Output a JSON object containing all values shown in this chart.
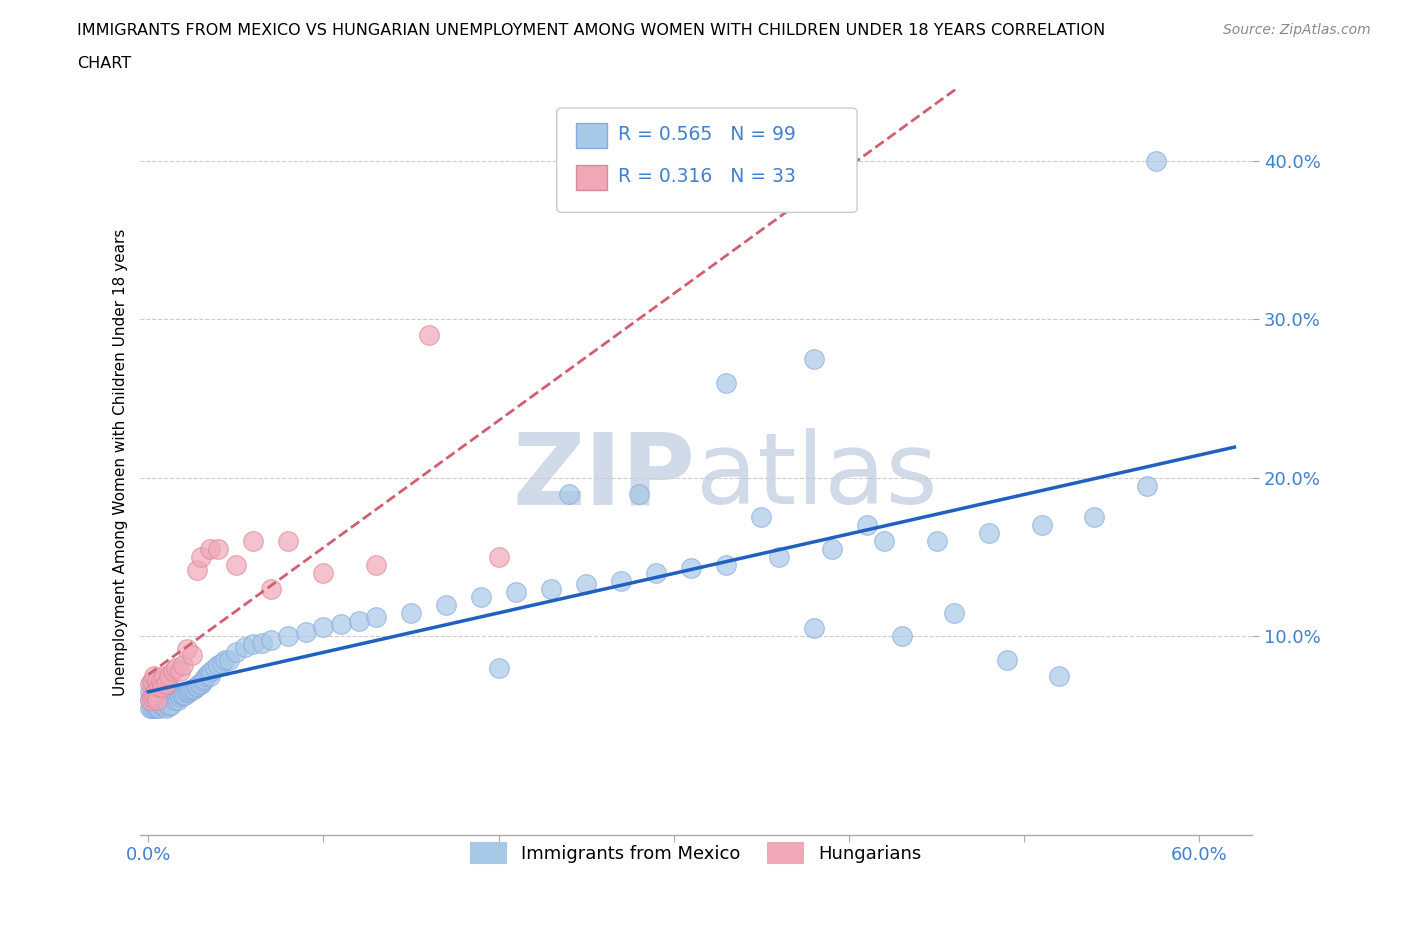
{
  "title_line1": "IMMIGRANTS FROM MEXICO VS HUNGARIAN UNEMPLOYMENT AMONG WOMEN WITH CHILDREN UNDER 18 YEARS CORRELATION",
  "title_line2": "CHART",
  "source": "Source: ZipAtlas.com",
  "ylabel": "Unemployment Among Women with Children Under 18 years",
  "xlim": [
    -0.005,
    0.63
  ],
  "ylim": [
    -0.025,
    0.445
  ],
  "xtick_positions": [
    0.0,
    0.1,
    0.2,
    0.3,
    0.4,
    0.5,
    0.6
  ],
  "ytick_positions": [
    0.1,
    0.2,
    0.3,
    0.4
  ],
  "ytick_labels": [
    "10.0%",
    "20.0%",
    "30.0%",
    "40.0%"
  ],
  "r_mexico": 0.565,
  "n_mexico": 99,
  "r_hungarian": 0.316,
  "n_hungarian": 33,
  "color_mexico": "#a8c8e8",
  "color_hungarian": "#f0a8b8",
  "trend_mexico_color": "#2060c0",
  "trend_hungarian_color": "#d06070",
  "background_color": "#ffffff",
  "legend_label_mexico": "Immigrants from Mexico",
  "legend_label_hungarian": "Hungarians",
  "tick_color": "#4080d0",
  "watermark_color": "#d0dae8",
  "mexico_x": [
    0.001,
    0.001,
    0.001,
    0.002,
    0.002,
    0.002,
    0.003,
    0.003,
    0.003,
    0.004,
    0.004,
    0.005,
    0.005,
    0.005,
    0.006,
    0.006,
    0.007,
    0.007,
    0.008,
    0.008,
    0.009,
    0.009,
    0.01,
    0.01,
    0.011,
    0.011,
    0.012,
    0.012,
    0.013,
    0.014,
    0.015,
    0.016,
    0.017,
    0.018,
    0.019,
    0.02,
    0.021,
    0.022,
    0.023,
    0.024,
    0.025,
    0.026,
    0.027,
    0.028,
    0.029,
    0.03,
    0.031,
    0.032,
    0.033,
    0.034,
    0.035,
    0.036,
    0.038,
    0.04,
    0.042,
    0.044,
    0.046,
    0.05,
    0.055,
    0.06,
    0.065,
    0.07,
    0.08,
    0.09,
    0.1,
    0.11,
    0.12,
    0.13,
    0.15,
    0.17,
    0.19,
    0.21,
    0.23,
    0.25,
    0.27,
    0.29,
    0.31,
    0.33,
    0.36,
    0.39,
    0.42,
    0.45,
    0.48,
    0.51,
    0.54,
    0.57,
    0.33,
    0.2,
    0.38,
    0.43,
    0.49,
    0.52,
    0.24,
    0.28,
    0.35,
    0.41,
    0.46,
    0.38,
    0.575
  ],
  "mexico_y": [
    0.055,
    0.06,
    0.065,
    0.055,
    0.062,
    0.07,
    0.055,
    0.06,
    0.068,
    0.056,
    0.063,
    0.055,
    0.06,
    0.067,
    0.055,
    0.062,
    0.057,
    0.064,
    0.056,
    0.063,
    0.057,
    0.065,
    0.055,
    0.063,
    0.057,
    0.064,
    0.056,
    0.063,
    0.057,
    0.063,
    0.06,
    0.065,
    0.06,
    0.062,
    0.063,
    0.063,
    0.063,
    0.065,
    0.065,
    0.066,
    0.067,
    0.067,
    0.068,
    0.069,
    0.07,
    0.07,
    0.072,
    0.073,
    0.075,
    0.076,
    0.075,
    0.078,
    0.08,
    0.082,
    0.083,
    0.085,
    0.085,
    0.09,
    0.093,
    0.095,
    0.096,
    0.098,
    0.1,
    0.103,
    0.106,
    0.108,
    0.11,
    0.112,
    0.115,
    0.12,
    0.125,
    0.128,
    0.13,
    0.133,
    0.135,
    0.14,
    0.143,
    0.145,
    0.15,
    0.155,
    0.16,
    0.16,
    0.165,
    0.17,
    0.175,
    0.195,
    0.26,
    0.08,
    0.275,
    0.1,
    0.085,
    0.075,
    0.19,
    0.19,
    0.175,
    0.17,
    0.115,
    0.105,
    0.4
  ],
  "hungarian_x": [
    0.001,
    0.001,
    0.002,
    0.002,
    0.003,
    0.003,
    0.004,
    0.005,
    0.005,
    0.006,
    0.007,
    0.008,
    0.009,
    0.01,
    0.012,
    0.014,
    0.016,
    0.018,
    0.02,
    0.022,
    0.025,
    0.028,
    0.03,
    0.035,
    0.04,
    0.05,
    0.06,
    0.07,
    0.08,
    0.1,
    0.13,
    0.16,
    0.2
  ],
  "hungarian_y": [
    0.06,
    0.07,
    0.062,
    0.072,
    0.063,
    0.075,
    0.065,
    0.06,
    0.072,
    0.068,
    0.072,
    0.068,
    0.075,
    0.07,
    0.075,
    0.078,
    0.08,
    0.078,
    0.082,
    0.092,
    0.088,
    0.142,
    0.15,
    0.155,
    0.155,
    0.145,
    0.16,
    0.13,
    0.16,
    0.14,
    0.145,
    0.29,
    0.15
  ]
}
